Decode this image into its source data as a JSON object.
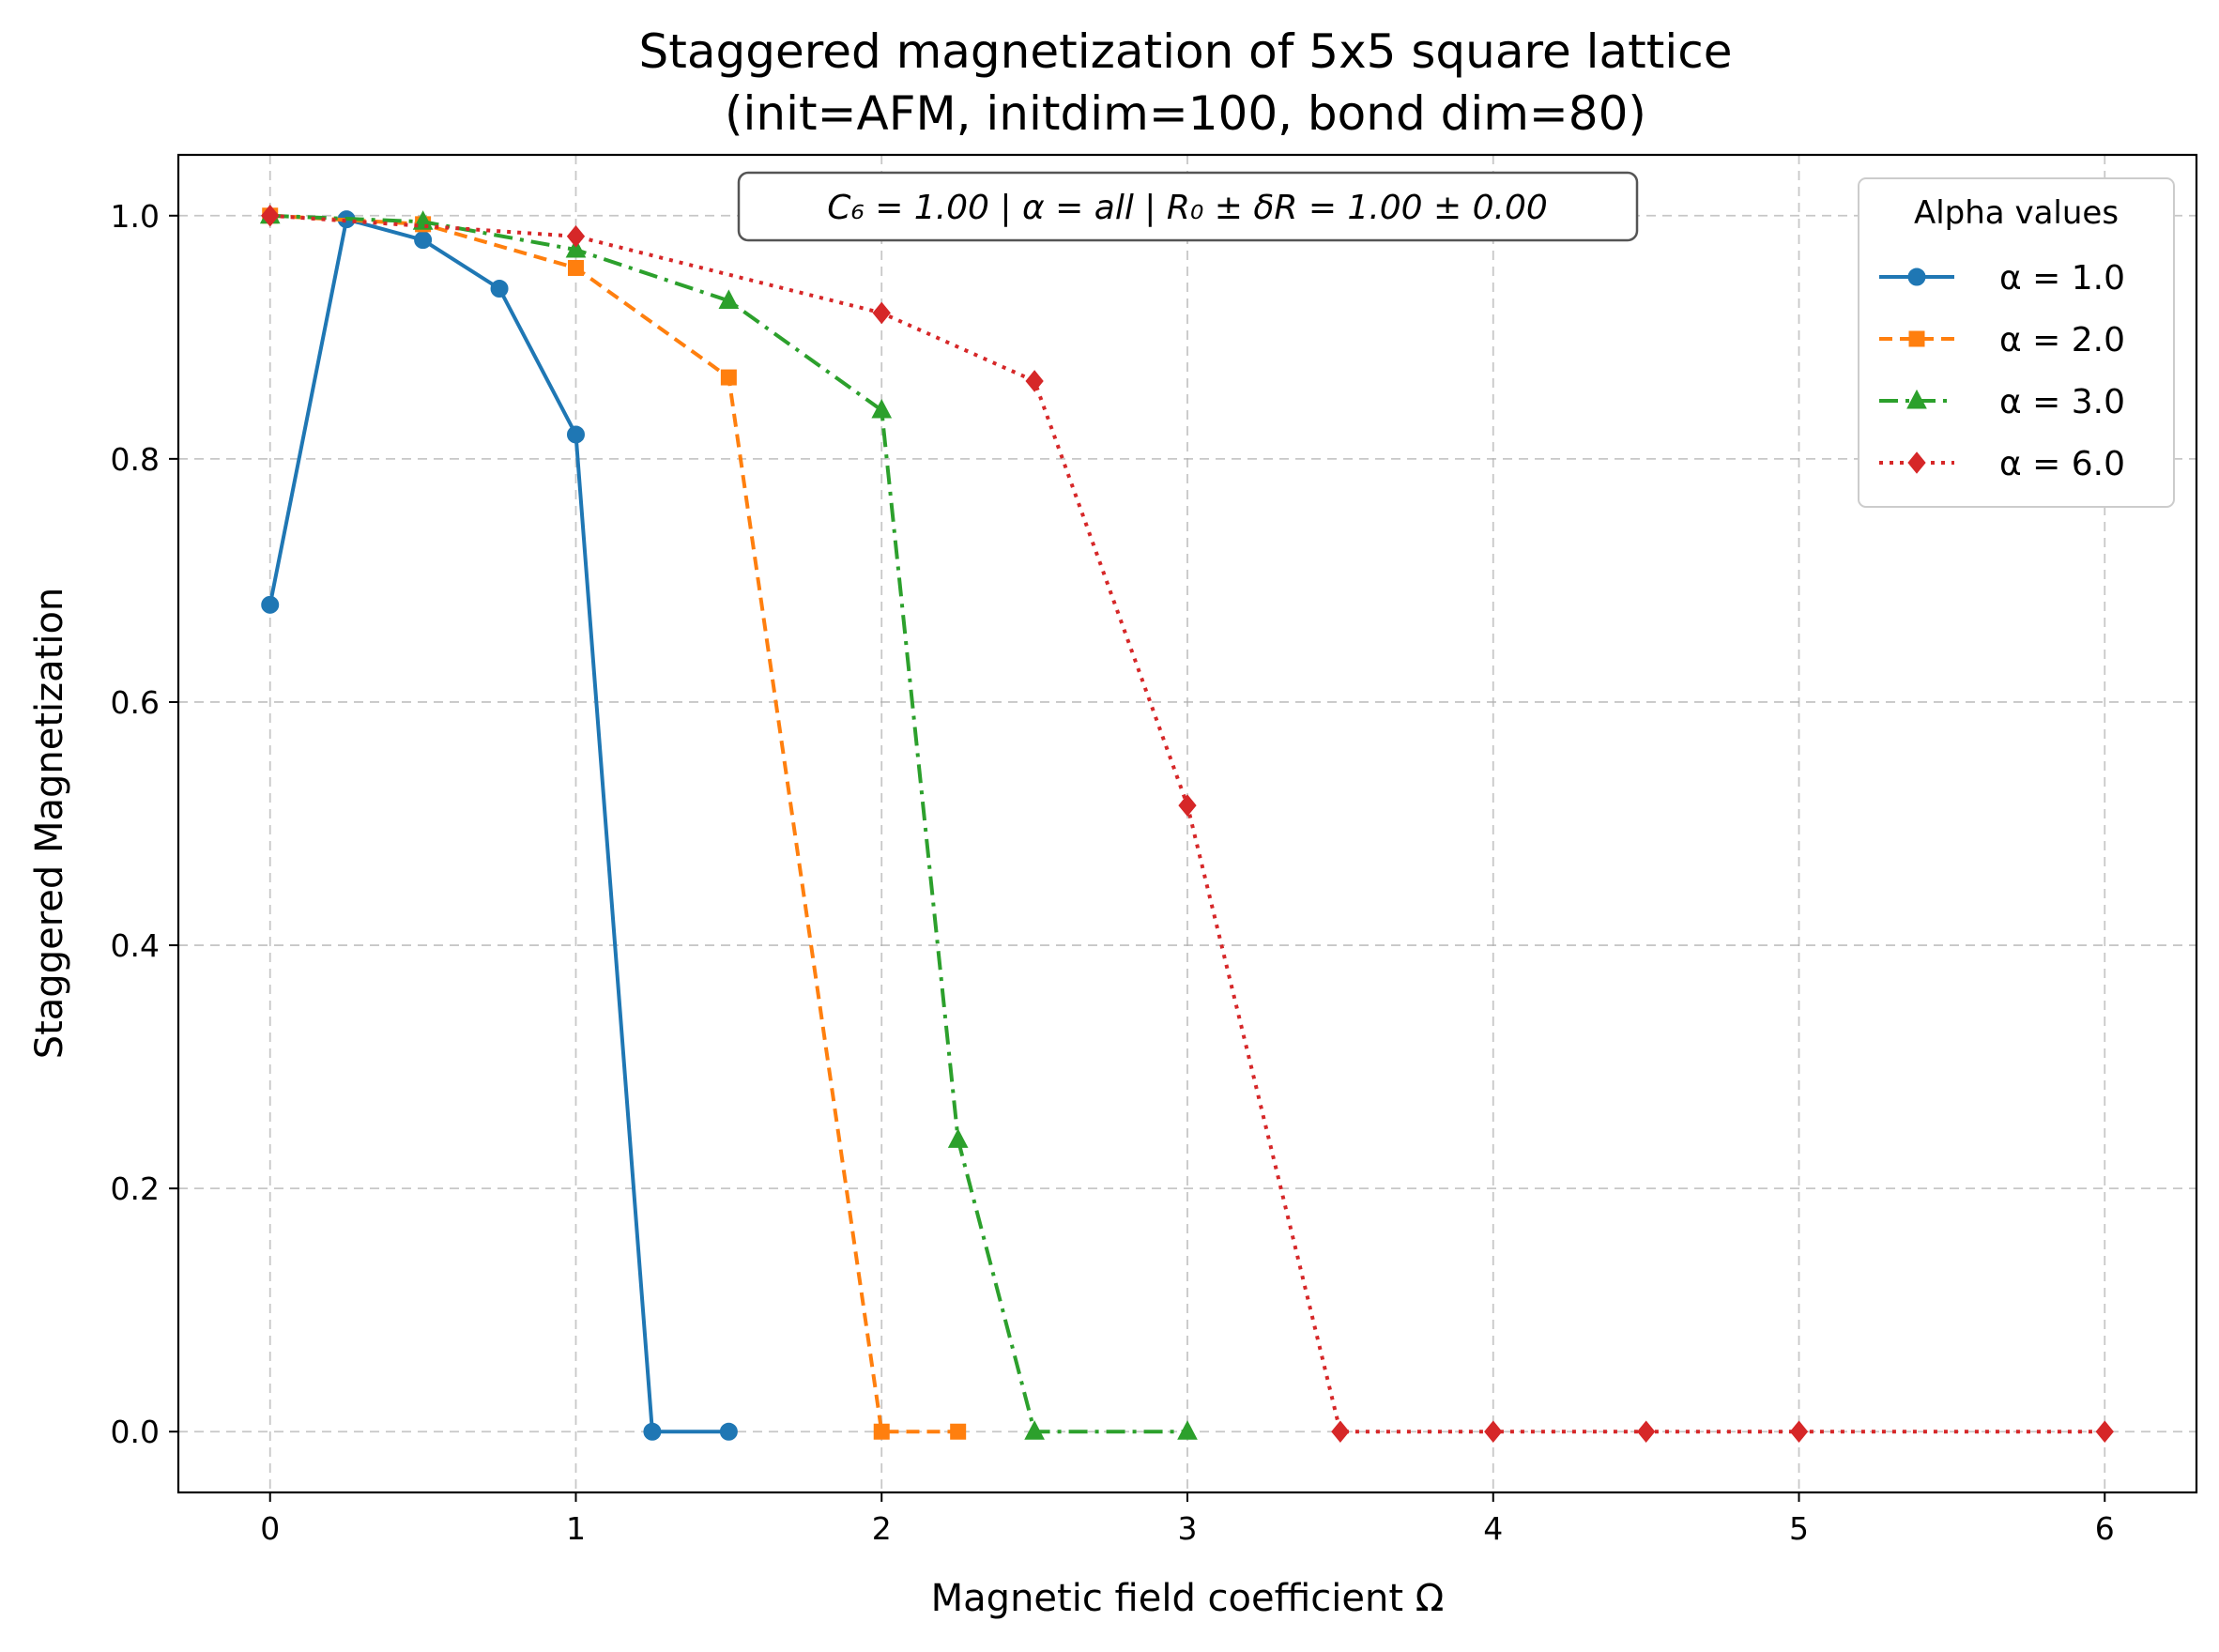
{
  "chart_data": {
    "type": "line",
    "title": "Staggered magnetization of 5x5 square lattice",
    "subtitle": "(init=AFM, initdim=100, bond dim=80)",
    "xlabel": "Magnetic field coefficient Ω",
    "ylabel": "Staggered Magnetization",
    "xlim": [
      -0.3,
      6.3
    ],
    "ylim": [
      -0.05,
      1.05
    ],
    "xticks": [
      0,
      1,
      2,
      3,
      4,
      5,
      6
    ],
    "xtick_labels": [
      "0",
      "1",
      "2",
      "3",
      "4",
      "5",
      "6"
    ],
    "yticks": [
      0.0,
      0.2,
      0.4,
      0.6,
      0.8,
      1.0
    ],
    "ytick_labels": [
      "0.0",
      "0.2",
      "0.4",
      "0.6",
      "0.8",
      "1.0"
    ],
    "grid": true,
    "legend_title": "Alpha values",
    "legend_position": "top-right",
    "annotation": "C₆ = 1.00 | α = all | R₀ ± δR = 1.00 ± 0.00",
    "series": [
      {
        "name": "α = 1.0",
        "color": "#1f77b4",
        "marker": "circle",
        "linestyle": "solid",
        "x": [
          0,
          0.25,
          0.5,
          0.75,
          1.0,
          1.25,
          1.5
        ],
        "y": [
          0.68,
          0.997,
          0.98,
          0.94,
          0.82,
          0.0,
          0.0
        ]
      },
      {
        "name": "α = 2.0",
        "color": "#ff7f0e",
        "marker": "square",
        "linestyle": "dashed",
        "x": [
          0,
          0.5,
          1.0,
          1.5,
          2.0,
          2.25
        ],
        "y": [
          1.0,
          0.993,
          0.957,
          0.867,
          0.0,
          0.0
        ]
      },
      {
        "name": "α = 3.0",
        "color": "#2ca02c",
        "marker": "triangle",
        "linestyle": "dashdot",
        "x": [
          0,
          0.5,
          1.0,
          1.5,
          2.0,
          2.25,
          2.5,
          3.0
        ],
        "y": [
          1.0,
          0.995,
          0.972,
          0.93,
          0.84,
          0.24,
          0.0,
          0.0
        ]
      },
      {
        "name": "α = 6.0",
        "color": "#d62728",
        "marker": "diamond",
        "linestyle": "dotted",
        "x": [
          0,
          1.0,
          2.0,
          2.5,
          3.0,
          3.5,
          4.0,
          4.5,
          5.0,
          6.0
        ],
        "y": [
          1.0,
          0.983,
          0.92,
          0.864,
          0.515,
          0.0,
          0.0,
          0.0,
          0.0,
          0.0
        ]
      }
    ]
  }
}
